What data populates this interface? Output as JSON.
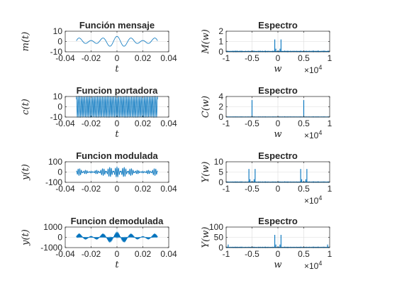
{
  "figure": {
    "exponent_label": "×10",
    "exponent_value": "4"
  },
  "chart_data": [
    {
      "type": "line",
      "title": "Función mensaje",
      "xlabel": "t",
      "ylabel": "m(t)",
      "xlim": [
        -0.04,
        0.04
      ],
      "ylim": [
        -10,
        10
      ],
      "xticks": [
        "-0.04",
        "-0.02",
        "0",
        "0.02",
        "0.04"
      ],
      "yticks": [
        "-10",
        "0",
        "10"
      ],
      "grid": true,
      "signal": {
        "kind": "message",
        "t_range": [
          -0.0314,
          0.0314
        ],
        "amplitude_max": 5
      }
    },
    {
      "type": "line",
      "title": "Espectro",
      "xlabel": "w",
      "ylabel": "M(w)",
      "xlim": [
        -10000,
        10000
      ],
      "ylim": [
        0,
        2
      ],
      "xticks": [
        "-1",
        "-0.5",
        "0",
        "0.5",
        "1"
      ],
      "yticks": [
        "0",
        "1",
        "2"
      ],
      "x_exponent": true,
      "grid": true,
      "peaks": [
        {
          "x": -600,
          "y": 1.2
        },
        {
          "x": -400,
          "y": 0.3
        },
        {
          "x": 400,
          "y": 0.3
        },
        {
          "x": 600,
          "y": 1.2
        }
      ],
      "noise_floor": 0.05
    },
    {
      "type": "line",
      "title": "Funcion portadora",
      "xlabel": "t",
      "ylabel": "c(t)",
      "xlim": [
        -0.04,
        0.04
      ],
      "ylim": [
        -10,
        10
      ],
      "xticks": [
        "-0.04",
        "-0.02",
        "0",
        "0.02",
        "0.04"
      ],
      "yticks": [
        "-10",
        "0",
        "10"
      ],
      "grid": true,
      "signal": {
        "kind": "carrier",
        "t_range": [
          -0.0314,
          0.0314
        ],
        "amplitude_max": 10
      }
    },
    {
      "type": "line",
      "title": "Espectro",
      "xlabel": "w",
      "ylabel": "C(w)",
      "xlim": [
        -10000,
        10000
      ],
      "ylim": [
        0,
        4
      ],
      "xticks": [
        "-1",
        "-0.5",
        "0",
        "0.5",
        "1"
      ],
      "yticks": [
        "0",
        "2",
        "4"
      ],
      "x_exponent": true,
      "grid": true,
      "peaks": [
        {
          "x": -5000,
          "y": 3.3
        },
        {
          "x": 5000,
          "y": 3.3
        }
      ],
      "noise_floor": 0.05
    },
    {
      "type": "line",
      "title": "Funcion modulada",
      "xlabel": "",
      "ylabel": "y(t)",
      "xlim": [
        -0.04,
        0.04
      ],
      "ylim": [
        -100,
        100
      ],
      "xticks": [
        "-0.04",
        "-0.02",
        "0",
        "0.02",
        "0.04"
      ],
      "yticks": [
        "-100",
        "0",
        "100"
      ],
      "grid": true,
      "signal": {
        "kind": "modulated",
        "t_range": [
          -0.0314,
          0.0314
        ],
        "amplitude_max": 50
      }
    },
    {
      "type": "line",
      "title": "Espectro",
      "xlabel": "",
      "ylabel": "Y(w)",
      "xlim": [
        -10000,
        10000
      ],
      "ylim": [
        0,
        10
      ],
      "xticks": [
        "-1",
        "-0.5",
        "0",
        "0.5",
        "1"
      ],
      "yticks": [
        "0",
        "5",
        "10"
      ],
      "x_exponent": true,
      "grid": true,
      "peaks": [
        {
          "x": -5600,
          "y": 6.5
        },
        {
          "x": -5400,
          "y": 1.5
        },
        {
          "x": -4600,
          "y": 1.5
        },
        {
          "x": -4400,
          "y": 6.5
        },
        {
          "x": 4400,
          "y": 6.5
        },
        {
          "x": 4600,
          "y": 1.5
        },
        {
          "x": 5400,
          "y": 1.5
        },
        {
          "x": 5600,
          "y": 6.5
        }
      ],
      "noise_floor": 0.2
    },
    {
      "type": "line",
      "title": "Funcion demodulada",
      "xlabel": "t",
      "ylabel": "y(t)",
      "xlim": [
        -0.04,
        0.04
      ],
      "ylim": [
        -1000,
        1000
      ],
      "xticks": [
        "-0.04",
        "-0.02",
        "0",
        "0.02",
        "0.04"
      ],
      "yticks": [
        "-1000",
        "0",
        "1000"
      ],
      "grid": true,
      "signal": {
        "kind": "demodulated",
        "t_range": [
          -0.0314,
          0.0314
        ],
        "amplitude_max": 500
      }
    },
    {
      "type": "line",
      "title": "Espectro",
      "xlabel": "w",
      "ylabel": "Y(w)",
      "xlim": [
        -10000,
        10000
      ],
      "ylim": [
        0,
        100
      ],
      "xticks": [
        "-1",
        "-0.5",
        "0",
        "0.5",
        "1"
      ],
      "yticks": [
        "0",
        "50",
        "100"
      ],
      "x_exponent": true,
      "grid": true,
      "peaks": [
        {
          "x": -9600,
          "y": 15
        },
        {
          "x": -600,
          "y": 62
        },
        {
          "x": -400,
          "y": 15
        },
        {
          "x": 400,
          "y": 15
        },
        {
          "x": 600,
          "y": 62
        },
        {
          "x": 9600,
          "y": 15
        }
      ],
      "noise_floor": 2
    }
  ]
}
